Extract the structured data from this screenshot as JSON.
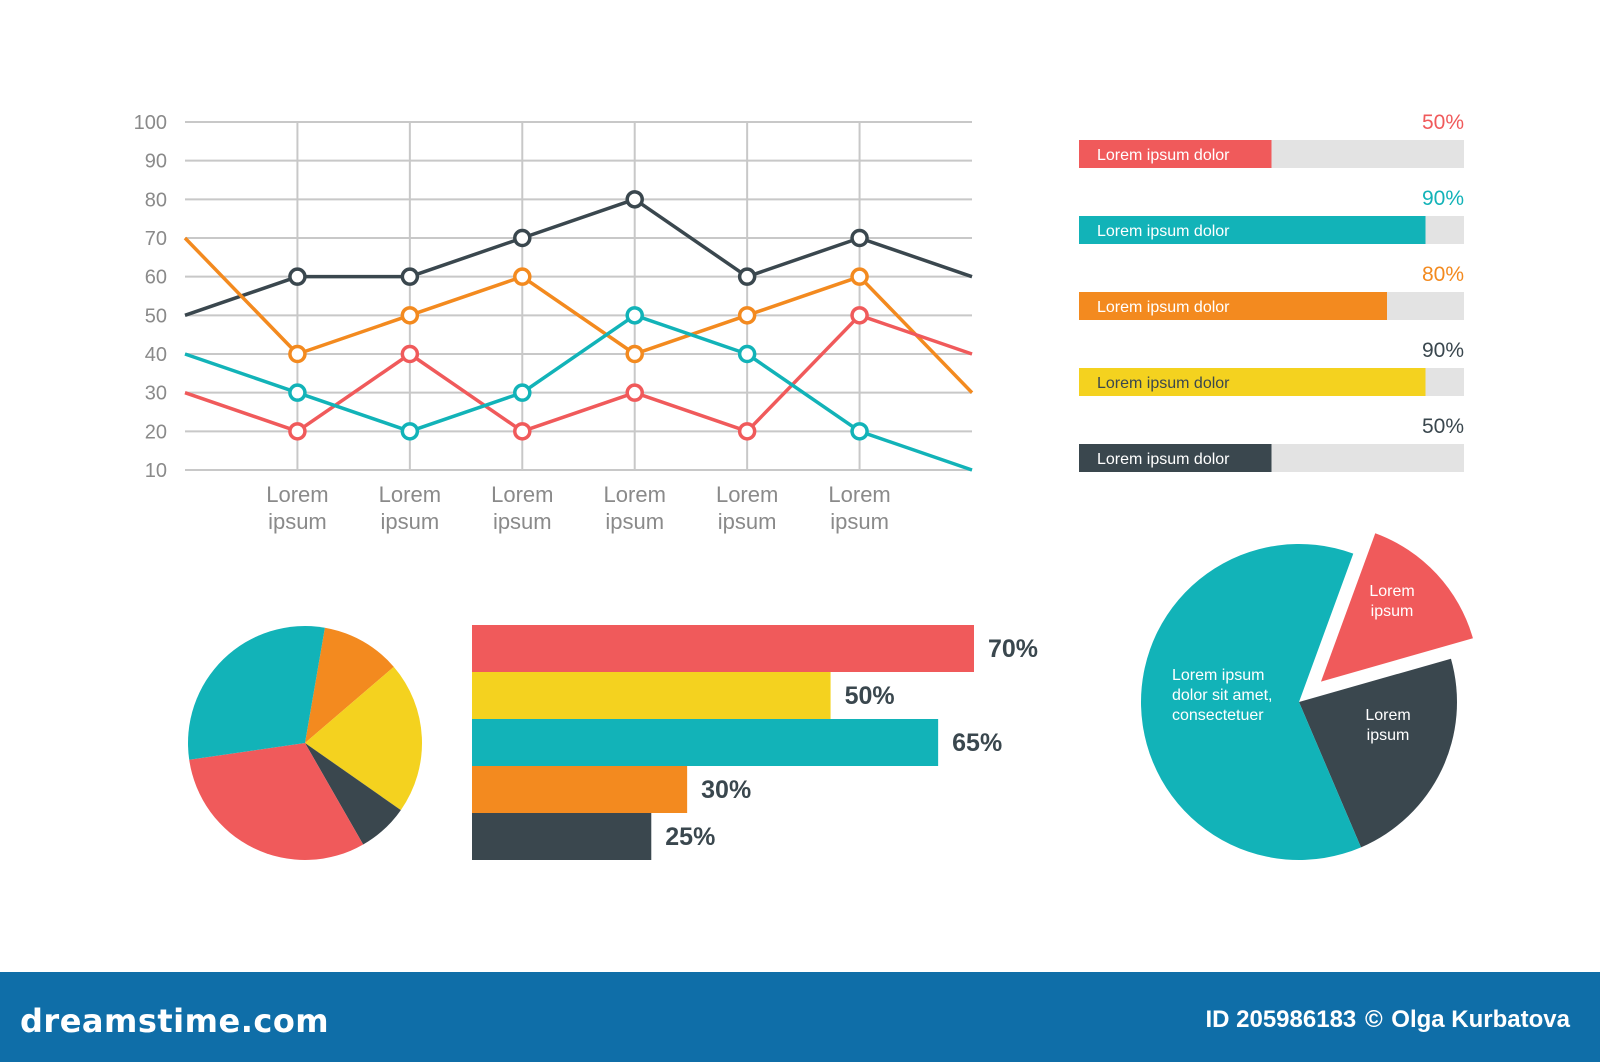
{
  "chart_data": [
    {
      "type": "line",
      "categories": [
        "",
        "Lorem ipsum",
        "Lorem ipsum",
        "Lorem ipsum",
        "Lorem ipsum",
        "Lorem ipsum",
        "Lorem ipsum",
        ""
      ],
      "ylim": [
        10,
        100
      ],
      "yticks": [
        10,
        20,
        30,
        40,
        50,
        60,
        70,
        80,
        90,
        100
      ],
      "grid": true,
      "series": [
        {
          "color": "#3a474e",
          "values": [
            50,
            60,
            60,
            70,
            80,
            60,
            70,
            60
          ]
        },
        {
          "color": "#f38a1f",
          "values": [
            70,
            40,
            50,
            60,
            40,
            50,
            60,
            30
          ]
        },
        {
          "color": "#f05a5b",
          "values": [
            30,
            20,
            40,
            20,
            30,
            20,
            50,
            40
          ]
        },
        {
          "color": "#12b3b8",
          "values": [
            40,
            30,
            20,
            30,
            50,
            40,
            20,
            10
          ]
        }
      ]
    },
    {
      "type": "bar",
      "orientation": "horizontal",
      "label": "Lorem ipsum dolor",
      "items": [
        {
          "label": "Lorem ipsum dolor",
          "value": 50,
          "value_label": "50%",
          "color": "#f05a5b",
          "value_color": "#f05a5b"
        },
        {
          "label": "Lorem ipsum dolor",
          "value": 90,
          "value_label": "90%",
          "color": "#12b3b8",
          "value_color": "#12b3b8"
        },
        {
          "label": "Lorem ipsum dolor",
          "value": 80,
          "value_label": "80%",
          "color": "#f38a1f",
          "value_color": "#f38a1f"
        },
        {
          "label": "Lorem ipsum dolor",
          "value": 90,
          "value_label": "90%",
          "color": "#f4d21f",
          "value_color": "#3a474e"
        },
        {
          "label": "Lorem ipsum dolor",
          "value": 50,
          "value_label": "50%",
          "color": "#3a474e",
          "value_color": "#3a474e"
        }
      ]
    },
    {
      "type": "pie",
      "slices": [
        {
          "value": 11,
          "color": "#f38a1f"
        },
        {
          "value": 21,
          "color": "#f4d21f"
        },
        {
          "value": 7,
          "color": "#3a474e"
        },
        {
          "value": 31,
          "color": "#f05a5b"
        },
        {
          "value": 30,
          "color": "#12b3b8"
        }
      ]
    },
    {
      "type": "bar",
      "orientation": "horizontal",
      "items": [
        {
          "value": 70,
          "value_label": "70%",
          "color": "#f05a5b"
        },
        {
          "value": 50,
          "value_label": "50%",
          "color": "#f4d21f"
        },
        {
          "value": 65,
          "value_label": "65%",
          "color": "#12b3b8"
        },
        {
          "value": 30,
          "value_label": "30%",
          "color": "#f38a1f"
        },
        {
          "value": 25,
          "value_label": "25%",
          "color": "#3a474e"
        }
      ]
    },
    {
      "type": "pie",
      "slices": [
        {
          "value": 15,
          "color": "#f05a5b",
          "label": [
            "Lorem",
            "ipsum"
          ],
          "exploded": true
        },
        {
          "value": 23,
          "color": "#3a474e",
          "label": [
            "Lorem",
            "ipsum"
          ],
          "exploded": false
        },
        {
          "value": 62,
          "color": "#12b3b8",
          "label": [
            "Lorem ipsum",
            "dolor sit amet,",
            "consectetuer"
          ],
          "exploded": false
        }
      ]
    }
  ],
  "footer": {
    "logo": "dreamstime.com",
    "id_text": "ID 205986183",
    "copyright": "©",
    "author": "Olga Kurbatova"
  }
}
